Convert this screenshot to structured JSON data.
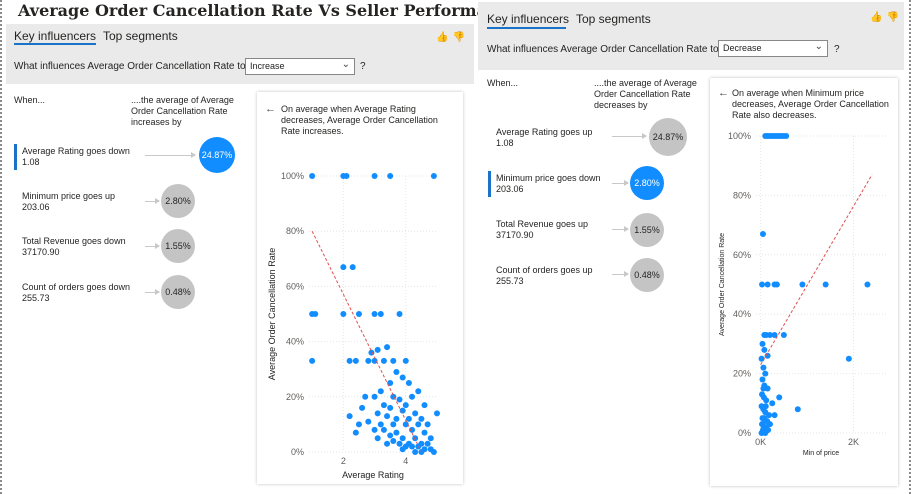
{
  "page_title": "Average Order Cancellation Rate Vs Seller Performance",
  "left_visual": {
    "tabs": [
      {
        "label": "Key influencers",
        "active": true
      },
      {
        "label": "Top segments",
        "active": false
      }
    ],
    "question_label": "What influences Average Order Cancellation Rate to",
    "dropdown_value": "Increase",
    "question_mark": "?",
    "when_header": "When...",
    "avg_header": "....the average of Average Order Cancellation Rate increases by",
    "influencers": [
      {
        "label": "Average Rating goes down",
        "value": "1.08",
        "impact": "24.87%",
        "impact_num": 24.87,
        "selected": true
      },
      {
        "label": "Minimum price goes up",
        "value": "203.06",
        "impact": "2.80%",
        "impact_num": 2.8,
        "selected": false
      },
      {
        "label": "Total Revenue goes down",
        "value": "37170.90",
        "impact": "1.55%",
        "impact_num": 1.55,
        "selected": false
      },
      {
        "label": "Count of orders goes down",
        "value": "255.73",
        "impact": "0.48%",
        "impact_num": 0.48,
        "selected": false
      }
    ],
    "chart_description": "On average when Average Rating decreases, Average Order Cancellation Rate increases."
  },
  "right_visual": {
    "tabs": [
      {
        "label": "Key influencers",
        "active": true
      },
      {
        "label": "Top segments",
        "active": false
      }
    ],
    "question_label": "What influences Average Order Cancellation Rate to",
    "dropdown_value": "Decrease",
    "question_mark": "?",
    "when_header": "When...",
    "avg_header": "....the average of Average Order Cancellation Rate decreases by",
    "influencers": [
      {
        "label": "Average Rating goes up",
        "value": "1.08",
        "impact": "24.87%",
        "impact_num": 24.87,
        "selected": false
      },
      {
        "label": "Minimum price goes down",
        "value": "203.06",
        "impact": "2.80%",
        "impact_num": 2.8,
        "selected": true
      },
      {
        "label": "Total Revenue goes up",
        "value": "37170.90",
        "impact": "1.55%",
        "impact_num": 1.55,
        "selected": false
      },
      {
        "label": "Count of orders goes up",
        "value": "255.73",
        "impact": "0.48%",
        "impact_num": 0.48,
        "selected": false
      }
    ],
    "chart_description": "On average when Minimum price decreases, Average Order Cancellation Rate also decreases."
  },
  "icons": {
    "like": "thumbs-up-icon",
    "dislike": "thumbs-down-icon",
    "back": "left-arrow-icon",
    "chevron": "chevron-down-icon"
  },
  "colors": {
    "accent": "#118dff",
    "bubble": "#c4c4c4",
    "trend": "#e05050",
    "tab_underline": "#1a73c8"
  },
  "chart_data": [
    {
      "type": "scatter",
      "xlabel": "Average Rating",
      "ylabel": "Average Order Cancellation Rate",
      "xlim": [
        0.9,
        5.0
      ],
      "ylim": [
        0,
        1
      ],
      "xticks": [
        "2",
        "4"
      ],
      "xtick_values": [
        2,
        4
      ],
      "yticks": [
        "0%",
        "20%",
        "40%",
        "60%",
        "80%",
        "100%"
      ],
      "ytick_values": [
        0,
        0.2,
        0.4,
        0.6,
        0.8,
        1.0
      ],
      "trend": {
        "x": [
          1.0,
          4.5
        ],
        "y": [
          0.8,
          0.0
        ]
      },
      "points": [
        [
          1.0,
          1.0
        ],
        [
          2.0,
          1.0
        ],
        [
          2.1,
          1.0
        ],
        [
          3.0,
          1.0
        ],
        [
          3.5,
          1.0
        ],
        [
          4.9,
          1.0
        ],
        [
          2.0,
          0.67
        ],
        [
          2.3,
          0.67
        ],
        [
          1.0,
          0.5
        ],
        [
          1.1,
          0.5
        ],
        [
          2.0,
          0.5
        ],
        [
          2.5,
          0.5
        ],
        [
          3.0,
          0.5
        ],
        [
          3.2,
          0.5
        ],
        [
          3.8,
          0.5
        ],
        [
          1.0,
          0.33
        ],
        [
          2.2,
          0.33
        ],
        [
          2.4,
          0.33
        ],
        [
          2.8,
          0.33
        ],
        [
          3.0,
          0.33
        ],
        [
          3.3,
          0.33
        ],
        [
          3.6,
          0.33
        ],
        [
          4.0,
          0.33
        ],
        [
          3.4,
          0.38
        ],
        [
          2.9,
          0.36
        ],
        [
          3.1,
          0.37
        ],
        [
          3.5,
          0.25
        ],
        [
          3.7,
          0.29
        ],
        [
          3.9,
          0.27
        ],
        [
          4.1,
          0.25
        ],
        [
          3.2,
          0.22
        ],
        [
          3.6,
          0.2
        ],
        [
          3.8,
          0.19
        ],
        [
          4.2,
          0.2
        ],
        [
          4.4,
          0.22
        ],
        [
          3.0,
          0.2
        ],
        [
          2.7,
          0.2
        ],
        [
          3.3,
          0.17
        ],
        [
          3.5,
          0.16
        ],
        [
          3.9,
          0.15
        ],
        [
          4.3,
          0.14
        ],
        [
          4.6,
          0.17
        ],
        [
          4.0,
          0.17
        ],
        [
          2.6,
          0.16
        ],
        [
          3.1,
          0.14
        ],
        [
          3.4,
          0.13
        ],
        [
          3.7,
          0.12
        ],
        [
          4.1,
          0.12
        ],
        [
          4.5,
          0.12
        ],
        [
          5.0,
          0.14
        ],
        [
          2.2,
          0.13
        ],
        [
          2.8,
          0.11
        ],
        [
          3.2,
          0.1
        ],
        [
          3.6,
          0.1
        ],
        [
          4.0,
          0.1
        ],
        [
          4.4,
          0.1
        ],
        [
          4.7,
          0.1
        ],
        [
          2.5,
          0.1
        ],
        [
          3.0,
          0.08
        ],
        [
          3.3,
          0.08
        ],
        [
          3.7,
          0.07
        ],
        [
          4.2,
          0.08
        ],
        [
          4.6,
          0.07
        ],
        [
          2.4,
          0.07
        ],
        [
          3.5,
          0.06
        ],
        [
          3.9,
          0.05
        ],
        [
          4.3,
          0.05
        ],
        [
          4.8,
          0.05
        ],
        [
          3.1,
          0.05
        ],
        [
          3.6,
          0.04
        ],
        [
          3.8,
          0.03
        ],
        [
          4.1,
          0.03
        ],
        [
          4.5,
          0.03
        ],
        [
          4.7,
          0.03
        ],
        [
          3.4,
          0.03
        ],
        [
          4.0,
          0.02
        ],
        [
          4.2,
          0.02
        ],
        [
          4.4,
          0.02
        ],
        [
          4.6,
          0.01
        ],
        [
          4.8,
          0.01
        ],
        [
          3.9,
          0.01
        ],
        [
          4.3,
          0.0
        ],
        [
          4.5,
          0.0
        ],
        [
          4.9,
          0.0
        ]
      ]
    },
    {
      "type": "scatter",
      "xlabel": "Min of price",
      "ylabel": "Average Order Cancellation Rate",
      "xlim": [
        -100,
        2700
      ],
      "ylim": [
        0,
        1
      ],
      "xticks": [
        "0K",
        "2K"
      ],
      "xtick_values": [
        0,
        2000
      ],
      "yticks": [
        "0%",
        "20%",
        "40%",
        "60%",
        "80%",
        "100%"
      ],
      "ytick_values": [
        0,
        0.2,
        0.4,
        0.6,
        0.8,
        1.0
      ],
      "trend": {
        "x": [
          0,
          2400
        ],
        "y": [
          0.23,
          0.87
        ]
      },
      "points": [
        [
          100,
          1.0
        ],
        [
          150,
          1.0
        ],
        [
          200,
          1.0
        ],
        [
          250,
          1.0
        ],
        [
          300,
          1.0
        ],
        [
          350,
          1.0
        ],
        [
          400,
          1.0
        ],
        [
          450,
          1.0
        ],
        [
          500,
          1.0
        ],
        [
          550,
          1.0
        ],
        [
          50,
          0.67
        ],
        [
          30,
          0.5
        ],
        [
          150,
          0.5
        ],
        [
          300,
          0.5
        ],
        [
          350,
          0.5
        ],
        [
          900,
          0.5
        ],
        [
          1400,
          0.5
        ],
        [
          2300,
          0.5
        ],
        [
          80,
          0.33
        ],
        [
          120,
          0.33
        ],
        [
          200,
          0.33
        ],
        [
          300,
          0.33
        ],
        [
          500,
          0.33
        ],
        [
          40,
          0.3
        ],
        [
          80,
          0.28
        ],
        [
          150,
          0.26
        ],
        [
          20,
          0.25
        ],
        [
          1900,
          0.25
        ],
        [
          60,
          0.22
        ],
        [
          100,
          0.2
        ],
        [
          40,
          0.18
        ],
        [
          80,
          0.16
        ],
        [
          150,
          0.15
        ],
        [
          30,
          0.13
        ],
        [
          70,
          0.12
        ],
        [
          120,
          0.11
        ],
        [
          250,
          0.1
        ],
        [
          400,
          0.12
        ],
        [
          800,
          0.08
        ],
        [
          20,
          0.09
        ],
        [
          60,
          0.08
        ],
        [
          100,
          0.07
        ],
        [
          180,
          0.06
        ],
        [
          300,
          0.06
        ],
        [
          40,
          0.05
        ],
        [
          90,
          0.04
        ],
        [
          140,
          0.04
        ],
        [
          200,
          0.03
        ],
        [
          30,
          0.03
        ],
        [
          70,
          0.02
        ],
        [
          120,
          0.02
        ],
        [
          160,
          0.01
        ],
        [
          50,
          0.01
        ],
        [
          100,
          0.0
        ],
        [
          20,
          0.0
        ],
        [
          80,
          0.05
        ],
        [
          60,
          0.15
        ],
        [
          110,
          0.09
        ]
      ]
    }
  ]
}
